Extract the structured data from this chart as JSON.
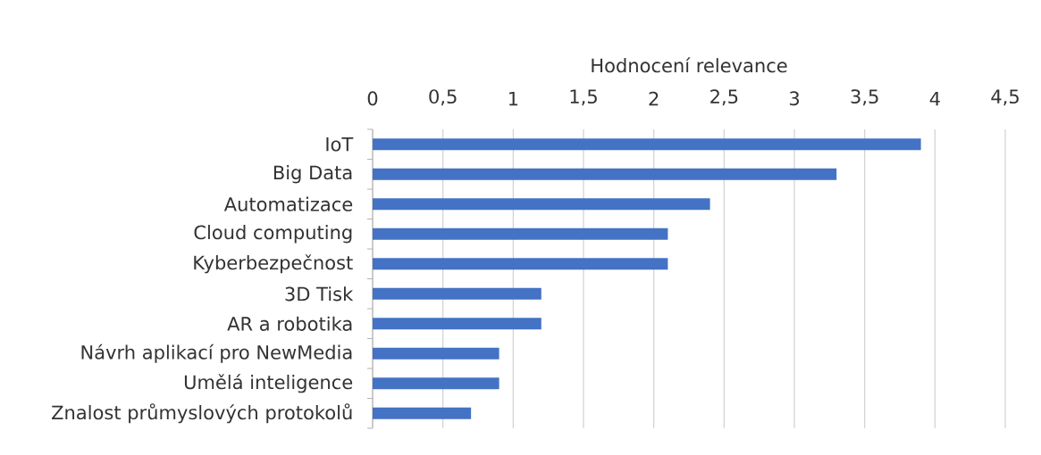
{
  "chart_data": {
    "type": "bar",
    "orientation": "horizontal",
    "xlabel": "Hodnocení relevance",
    "categories": [
      "IoT",
      "Big Data",
      "Automatizace",
      "Cloud computing",
      "Kyberbezpečnost",
      "3D Tisk",
      "AR a robotika",
      "Návrh aplikací pro NewMedia",
      "Umělá inteligence",
      "Znalost průmyslových protokolů"
    ],
    "values": [
      3.9,
      3.3,
      2.4,
      2.1,
      2.1,
      1.2,
      1.2,
      0.9,
      0.9,
      0.7
    ],
    "color": "#4472c4",
    "xlim": [
      0,
      4.5
    ],
    "xticks": [
      0,
      {
        "value": 0.5,
        "label": "0,5"
      },
      1,
      {
        "value": 1.5,
        "label": "1,5"
      },
      2,
      {
        "value": 2.5,
        "label": "2,5"
      },
      3,
      {
        "value": 3.5,
        "label": "3,5"
      },
      4,
      {
        "value": 4.5,
        "label": "4,5"
      }
    ],
    "grid": "x"
  }
}
